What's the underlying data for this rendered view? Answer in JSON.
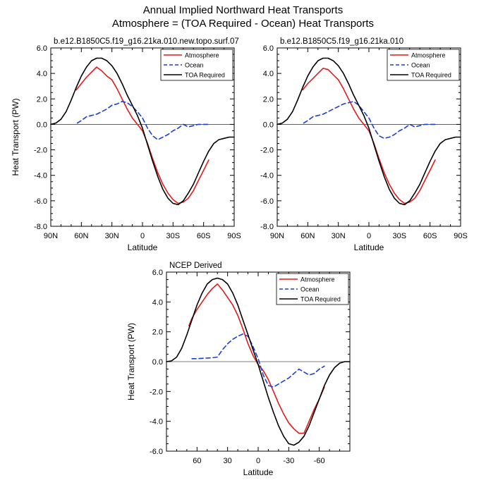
{
  "title_line1": "Annual Implied Northward Heat Transports",
  "title_line2": "Atmosphere = (TOA Required - Ocean) Heat Transports",
  "chart_data": [
    {
      "type": "line",
      "title": "b.e12.B1850C5.f19_g16.21ka.010.new.topo.surf.07",
      "xlabel": "Latitude",
      "ylabel": "Heat Transport (PW)",
      "xlim": [
        90,
        -90
      ],
      "ylim": [
        -8,
        6
      ],
      "xticks": [
        90,
        60,
        30,
        0,
        -30,
        -60,
        -90
      ],
      "xtick_labels": [
        "90N",
        "60N",
        "30N",
        "0",
        "30S",
        "60S",
        "90S"
      ],
      "yticks": [
        -8,
        -6,
        -4,
        -2,
        0,
        2,
        4,
        6
      ],
      "ytick_labels": [
        "-8.0",
        "-6.0",
        "-4.0",
        "-2.0",
        "0.0",
        "2.0",
        "4.0",
        "6.0"
      ],
      "legend": [
        "Atmosphere",
        "Ocean",
        "TOA Required"
      ],
      "series": [
        {
          "name": "Atmosphere",
          "color": "#e31a1c",
          "dash": "solid",
          "x": [
            65,
            60,
            55,
            50,
            45,
            40,
            35,
            30,
            25,
            20,
            15,
            10,
            5,
            0,
            -5,
            -10,
            -15,
            -20,
            -25,
            -30,
            -35,
            -40,
            -45,
            -50,
            -55,
            -60,
            -65
          ],
          "y": [
            2.7,
            3.2,
            3.7,
            4.1,
            4.5,
            4.2,
            3.8,
            3.5,
            2.8,
            2.0,
            1.2,
            0.5,
            0.0,
            -0.5,
            -1.5,
            -2.7,
            -3.8,
            -4.7,
            -5.4,
            -5.9,
            -6.2,
            -6.1,
            -5.8,
            -5.2,
            -4.4,
            -3.6,
            -2.8
          ]
        },
        {
          "name": "Ocean",
          "color": "#1f3ecf",
          "dash": "dashed",
          "x": [
            64,
            60,
            55,
            50,
            45,
            40,
            35,
            30,
            25,
            20,
            15,
            10,
            5,
            0,
            -5,
            -10,
            -15,
            -20,
            -25,
            -30,
            -35,
            -40,
            -45,
            -50,
            -55,
            -60,
            -65
          ],
          "y": [
            0.1,
            0.3,
            0.6,
            0.7,
            0.8,
            1.0,
            1.2,
            1.5,
            1.6,
            1.8,
            1.7,
            1.4,
            1.0,
            0.5,
            -0.3,
            -0.9,
            -1.2,
            -1.0,
            -0.8,
            -0.5,
            -0.3,
            0.0,
            -0.2,
            -0.1,
            0.0,
            0.0,
            0.0
          ]
        },
        {
          "name": "TOA Required",
          "color": "#000000",
          "dash": "solid",
          "x": [
            90,
            85,
            80,
            75,
            70,
            65,
            60,
            55,
            50,
            45,
            40,
            35,
            30,
            25,
            20,
            15,
            10,
            5,
            0,
            -5,
            -10,
            -15,
            -20,
            -25,
            -30,
            -35,
            -40,
            -45,
            -50,
            -55,
            -60,
            -65,
            -70,
            -75,
            -80,
            -85,
            -90
          ],
          "y": [
            0.0,
            0.1,
            0.4,
            1.0,
            1.9,
            2.9,
            3.8,
            4.5,
            5.0,
            5.2,
            5.2,
            5.0,
            4.6,
            4.0,
            3.2,
            2.3,
            1.5,
            0.7,
            -0.3,
            -1.6,
            -2.9,
            -4.1,
            -5.1,
            -5.8,
            -6.2,
            -6.3,
            -6.0,
            -5.4,
            -4.7,
            -3.8,
            -2.9,
            -2.1,
            -1.5,
            -1.2,
            -1.1,
            -1.0,
            -1.0
          ]
        }
      ]
    },
    {
      "type": "line",
      "title": "b.e12.B1850C5.f19_g16.21ka.010",
      "xlabel": "Latitude",
      "ylabel": "",
      "xlim": [
        90,
        -90
      ],
      "ylim": [
        -8,
        6
      ],
      "xticks": [
        90,
        60,
        30,
        0,
        -30,
        -60,
        -90
      ],
      "xtick_labels": [
        "90N",
        "60N",
        "30N",
        "0",
        "30S",
        "60S",
        "90S"
      ],
      "yticks": [
        -8,
        -6,
        -4,
        -2,
        0,
        2,
        4,
        6
      ],
      "ytick_labels": [
        "-8.0",
        "-6.0",
        "-4.0",
        "-2.0",
        "0.0",
        "2.0",
        "4.0",
        "6.0"
      ],
      "legend": [
        "Atmosphere",
        "Ocean",
        "TOA Required"
      ],
      "series": [
        {
          "name": "Atmosphere",
          "color": "#e31a1c",
          "dash": "solid",
          "x": [
            65,
            60,
            55,
            50,
            45,
            40,
            35,
            30,
            25,
            20,
            15,
            10,
            5,
            0,
            -5,
            -10,
            -15,
            -20,
            -25,
            -30,
            -35,
            -40,
            -45,
            -50,
            -55,
            -60,
            -65
          ],
          "y": [
            2.7,
            3.2,
            3.6,
            4.0,
            4.4,
            4.3,
            3.9,
            3.5,
            2.8,
            2.0,
            1.2,
            0.5,
            0.0,
            -0.5,
            -1.5,
            -2.7,
            -3.8,
            -4.7,
            -5.4,
            -5.9,
            -6.2,
            -6.1,
            -5.8,
            -5.2,
            -4.4,
            -3.6,
            -2.8
          ]
        },
        {
          "name": "Ocean",
          "color": "#1f3ecf",
          "dash": "dashed",
          "x": [
            64,
            60,
            55,
            50,
            45,
            40,
            35,
            30,
            25,
            20,
            15,
            10,
            5,
            0,
            -5,
            -10,
            -15,
            -20,
            -25,
            -30,
            -35,
            -40,
            -45,
            -50,
            -55,
            -60,
            -65
          ],
          "y": [
            0.1,
            0.3,
            0.6,
            0.7,
            0.8,
            1.0,
            1.2,
            1.4,
            1.6,
            1.7,
            1.8,
            1.5,
            1.0,
            0.5,
            -0.3,
            -0.9,
            -1.1,
            -1.0,
            -0.8,
            -0.5,
            -0.3,
            0.0,
            -0.2,
            -0.1,
            0.0,
            0.0,
            0.0
          ]
        },
        {
          "name": "TOA Required",
          "color": "#000000",
          "dash": "solid",
          "x": [
            90,
            85,
            80,
            75,
            70,
            65,
            60,
            55,
            50,
            45,
            40,
            35,
            30,
            25,
            20,
            15,
            10,
            5,
            0,
            -5,
            -10,
            -15,
            -20,
            -25,
            -30,
            -35,
            -40,
            -45,
            -50,
            -55,
            -60,
            -65,
            -70,
            -75,
            -80,
            -85,
            -90
          ],
          "y": [
            0.0,
            0.1,
            0.4,
            1.0,
            1.9,
            2.9,
            3.8,
            4.5,
            5.0,
            5.2,
            5.2,
            5.0,
            4.6,
            4.0,
            3.2,
            2.3,
            1.5,
            0.7,
            -0.3,
            -1.6,
            -2.9,
            -4.1,
            -5.1,
            -5.8,
            -6.2,
            -6.3,
            -6.0,
            -5.4,
            -4.7,
            -3.8,
            -2.9,
            -2.1,
            -1.5,
            -1.2,
            -1.1,
            -1.0,
            -1.0
          ]
        }
      ]
    },
    {
      "type": "line",
      "title": "NCEP Derived",
      "xlabel": "Latitude",
      "ylabel": "Heat Transport (PW)",
      "xlim": [
        90,
        -90
      ],
      "ylim": [
        -6,
        6
      ],
      "xticks": [
        60,
        30,
        0,
        -30,
        -60
      ],
      "xtick_labels": [
        "60",
        "30",
        "0",
        "-30",
        "-60"
      ],
      "yticks": [
        -6,
        -4,
        -2,
        0,
        2,
        4,
        6
      ],
      "ytick_labels": [
        "-6.0",
        "-4.0",
        "-2.0",
        "0.0",
        "2.0",
        "4.0",
        "6.0"
      ],
      "legend": [
        "Atmosphere",
        "Ocean",
        "TOA Required"
      ],
      "series": [
        {
          "name": "Atmosphere",
          "color": "#e31a1c",
          "dash": "solid",
          "x": [
            68,
            65,
            60,
            55,
            50,
            45,
            40,
            35,
            30,
            25,
            20,
            15,
            10,
            5,
            0,
            -5,
            -10,
            -15,
            -20,
            -25,
            -30,
            -35,
            -40,
            -45,
            -50,
            -55,
            -60,
            -65
          ],
          "y": [
            2.4,
            2.9,
            3.5,
            4.0,
            4.5,
            4.9,
            5.2,
            4.8,
            4.3,
            3.8,
            3.1,
            2.2,
            1.2,
            0.4,
            -0.2,
            -0.6,
            -1.2,
            -2.0,
            -2.8,
            -3.5,
            -4.1,
            -4.5,
            -4.8,
            -4.8,
            -4.0,
            -3.2,
            -2.5,
            -1.7
          ]
        },
        {
          "name": "Ocean",
          "color": "#1f3ecf",
          "dash": "dashed",
          "x": [
            65,
            60,
            55,
            50,
            45,
            40,
            35,
            30,
            25,
            20,
            15,
            10,
            5,
            0,
            -5,
            -10,
            -15,
            -20,
            -25,
            -30,
            -35,
            -40,
            -45,
            -50,
            -55,
            -60,
            -65
          ],
          "y": [
            0.2,
            0.2,
            0.22,
            0.24,
            0.26,
            0.3,
            0.8,
            1.2,
            1.5,
            1.7,
            1.85,
            1.7,
            1.0,
            0.2,
            -0.9,
            -1.6,
            -1.7,
            -1.5,
            -1.3,
            -1.1,
            -0.8,
            -0.5,
            -0.7,
            -0.9,
            -0.8,
            -0.5,
            -0.3
          ]
        },
        {
          "name": "TOA Required",
          "color": "#000000",
          "dash": "solid",
          "x": [
            90,
            85,
            80,
            75,
            70,
            65,
            60,
            55,
            50,
            45,
            40,
            35,
            30,
            25,
            20,
            15,
            10,
            5,
            0,
            -5,
            -10,
            -15,
            -20,
            -25,
            -30,
            -35,
            -40,
            -45,
            -50,
            -55,
            -60,
            -65,
            -70,
            -75,
            -80,
            -85,
            -90
          ],
          "y": [
            0.0,
            0.05,
            0.3,
            0.9,
            1.8,
            2.8,
            3.8,
            4.6,
            5.2,
            5.5,
            5.6,
            5.5,
            5.2,
            4.6,
            3.8,
            2.8,
            1.8,
            0.8,
            -0.2,
            -1.3,
            -2.4,
            -3.4,
            -4.3,
            -5.0,
            -5.5,
            -5.6,
            -5.4,
            -5.0,
            -4.3,
            -3.4,
            -2.5,
            -1.6,
            -0.9,
            -0.4,
            -0.1,
            0.0,
            0.0
          ]
        }
      ]
    }
  ]
}
